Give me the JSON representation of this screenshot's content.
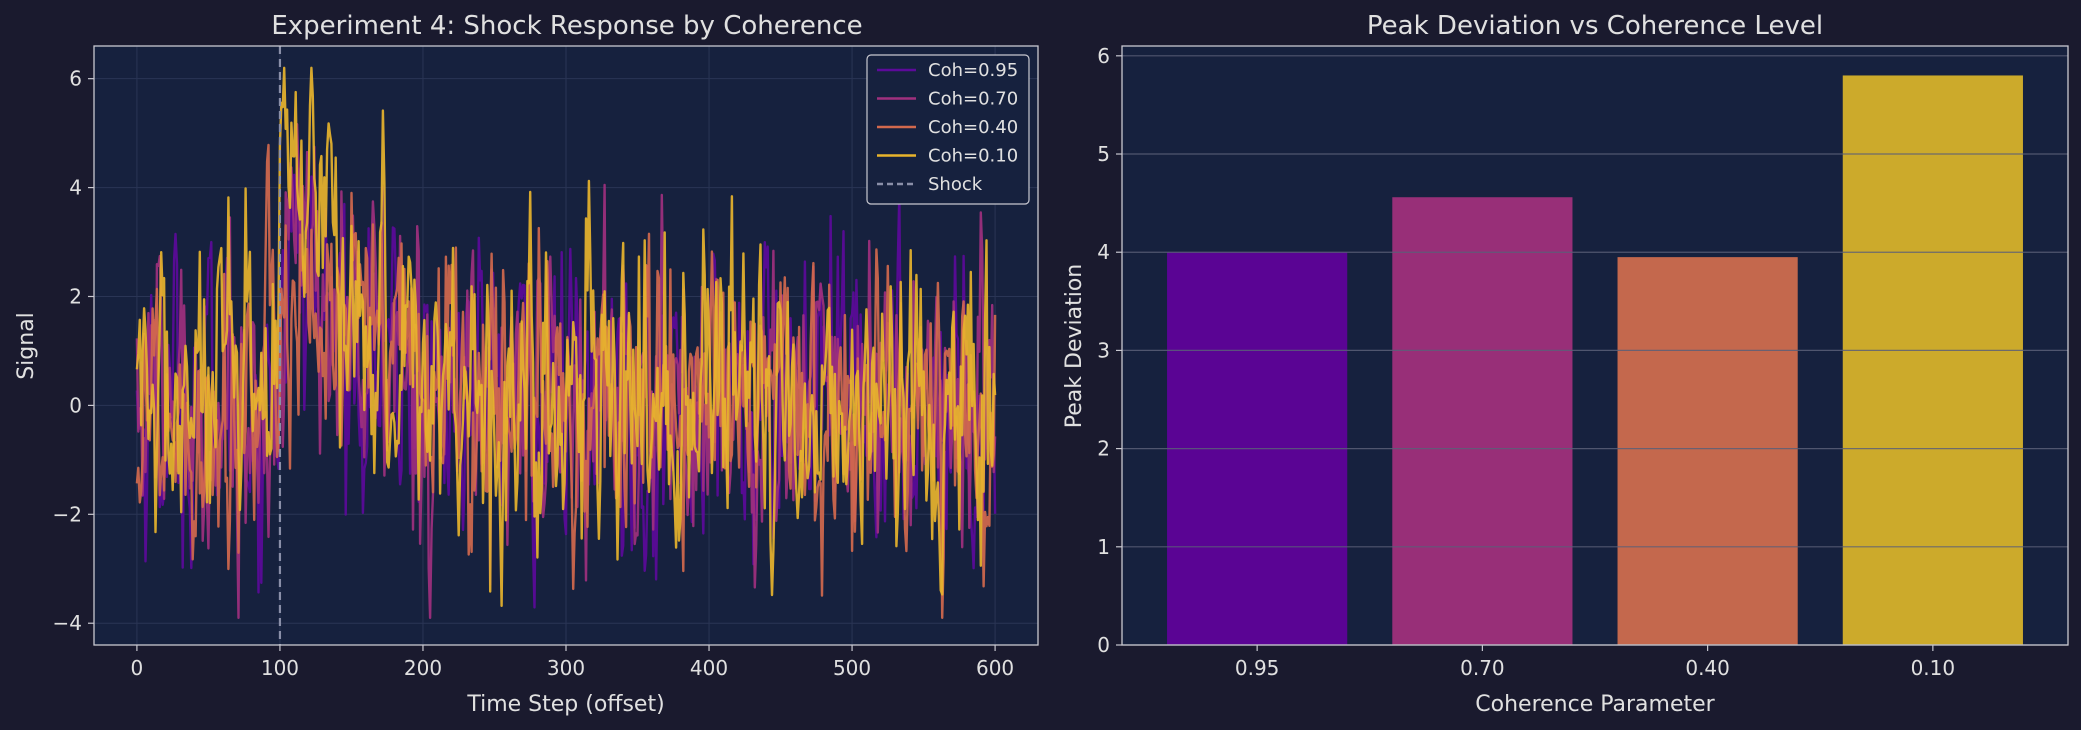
{
  "theme": {
    "figure_bg": "#1a1a2e",
    "axes_bg": "#16213e",
    "text": "#e0e0e0",
    "spine": "#c8c8d0",
    "grid": "#2a3555",
    "shock_line": "#8a8fa8"
  },
  "chart_data": [
    {
      "type": "line",
      "title": "Experiment 4: Shock Response by Coherence",
      "xlabel": "Time Step (offset)",
      "ylabel": "Signal",
      "xlim": [
        -30,
        630
      ],
      "ylim": [
        -4.4,
        6.6
      ],
      "xticks": [
        0,
        100,
        200,
        300,
        400,
        500,
        600
      ],
      "xtick_labels": [
        "0",
        "100",
        "200",
        "300",
        "400",
        "500",
        "600"
      ],
      "yticks": [
        -4,
        -2,
        0,
        2,
        4,
        6
      ],
      "ytick_labels": [
        "−4",
        "−2",
        "0",
        "2",
        "4",
        "6"
      ],
      "grid": true,
      "legend_position": "top-right",
      "x_range": [
        0,
        600
      ],
      "n_points": 601,
      "shock": {
        "x": 100,
        "label": "Shock",
        "style": "dashed"
      },
      "series": [
        {
          "name": "Coh=0.95",
          "color": "#5c0a9a",
          "coherence": 0.95,
          "peak_deviation": 4.0
        },
        {
          "name": "Coh=0.70",
          "color": "#a0307e",
          "coherence": 0.7,
          "peak_deviation": 4.56
        },
        {
          "name": "Coh=0.40",
          "color": "#d2694d",
          "coherence": 0.4,
          "peak_deviation": 3.95
        },
        {
          "name": "Coh=0.10",
          "color": "#e8b42c",
          "coherence": 0.1,
          "peak_deviation": 5.8
        }
      ]
    },
    {
      "type": "bar",
      "title": "Peak Deviation vs Coherence Level",
      "xlabel": "Coherence Parameter",
      "ylabel": "Peak Deviation",
      "categories": [
        "0.95",
        "0.70",
        "0.40",
        "0.10"
      ],
      "values": [
        4.0,
        4.56,
        3.95,
        5.8
      ],
      "colors": [
        "#5a0494",
        "#982f78",
        "#c4684d",
        "#ccaa2b"
      ],
      "ylim": [
        0,
        6.1
      ],
      "yticks": [
        0,
        1,
        2,
        3,
        4,
        5,
        6
      ],
      "ytick_labels": [
        "0",
        "1",
        "2",
        "3",
        "4",
        "5",
        "6"
      ],
      "grid": true
    }
  ]
}
